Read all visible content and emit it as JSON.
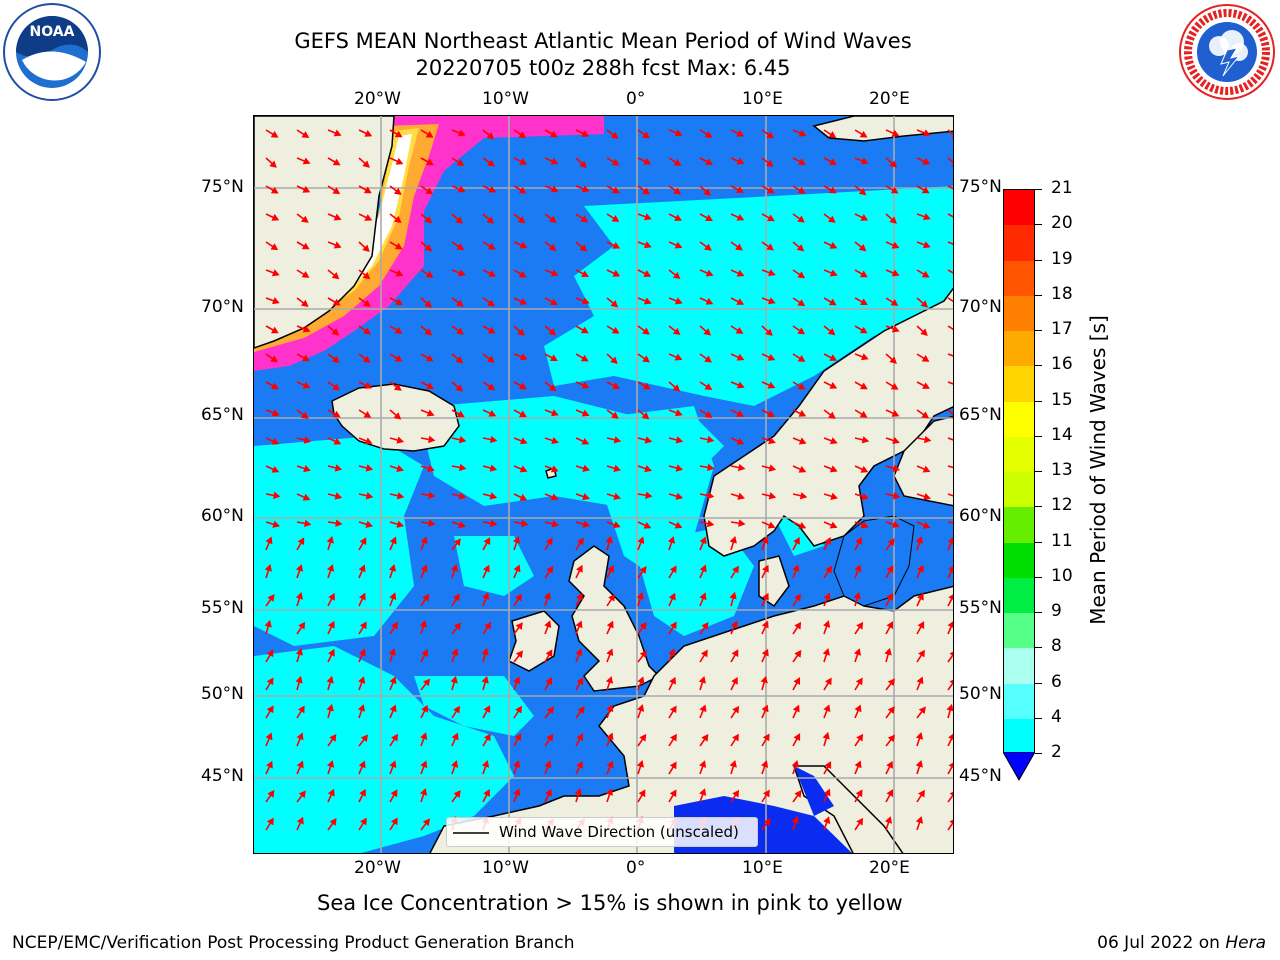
{
  "header": {
    "title_line1": "GEFS MEAN Northeast Atlantic Mean Period of Wind Waves",
    "title_line2": "20220705 t00z 288h fcst   Max: 6.45"
  },
  "logos": {
    "left": "noaa-logo",
    "left_text": "NOAA",
    "right": "nws-logo",
    "right_text": "NATIONAL WEATHER SERVICE"
  },
  "map": {
    "lon_labels": [
      "20°W",
      "10°W",
      "0°",
      "10°E",
      "20°E"
    ],
    "lat_labels": [
      "75°N",
      "70°N",
      "65°N",
      "60°N",
      "55°N",
      "50°N",
      "45°N"
    ],
    "legend_label": "Wind Wave Direction (unscaled)",
    "colors": {
      "ocean_base": "#1a7bf5",
      "cyan": "#00ffff",
      "land": "#efefdf",
      "arrow": "#ff0000",
      "ice_pink": "#ff33cc",
      "ice_yellow": "#ffcc00"
    }
  },
  "colorbar": {
    "label": "Mean Period of Wind Waves [s]",
    "ticks": [
      "21",
      "20",
      "19",
      "18",
      "17",
      "16",
      "15",
      "14",
      "13",
      "12",
      "11",
      "10",
      "9",
      "8",
      "6",
      "4",
      "2"
    ],
    "colors": [
      "#ff0000",
      "#ff2a00",
      "#ff5500",
      "#ff8000",
      "#ffaa00",
      "#ffd400",
      "#ffff00",
      "#e5ff00",
      "#ccff00",
      "#66ee00",
      "#00dd00",
      "#00ee44",
      "#55ff88",
      "#aaffee",
      "#55ffff",
      "#00ffff",
      "#1a7bf5",
      "#0000ff"
    ]
  },
  "footer": {
    "note": "Sea Ice Concentration > 15% is shown in pink to yellow",
    "left": "NCEP/EMC/Verification Post Processing Product Generation Branch",
    "right_date": "06 Jul 2022 on ",
    "right_machine": "Hera"
  }
}
